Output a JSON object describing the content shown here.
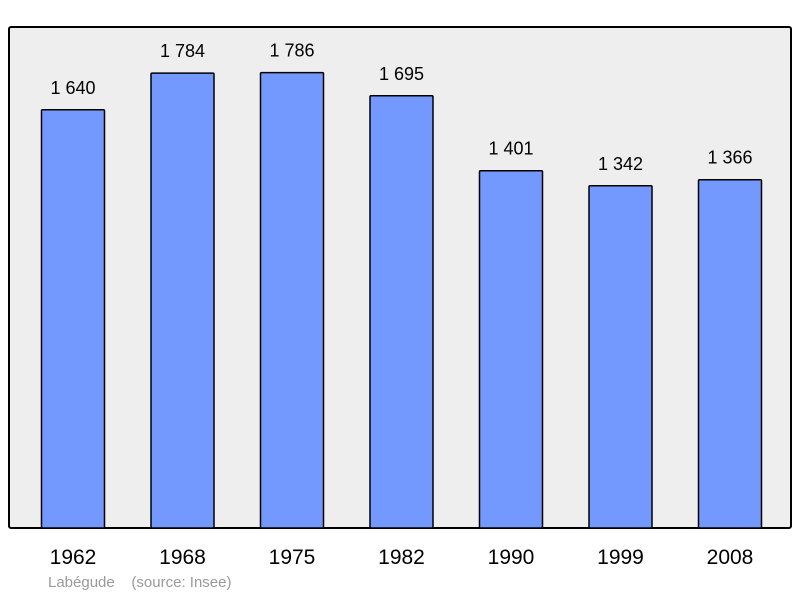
{
  "chart_data": {
    "type": "bar",
    "categories": [
      "1962",
      "1968",
      "1975",
      "1982",
      "1990",
      "1999",
      "2008"
    ],
    "values": [
      1640,
      1784,
      1786,
      1695,
      1401,
      1342,
      1366
    ],
    "value_labels": [
      "1 640",
      "1 784",
      "1 786",
      "1 695",
      "1 401",
      "1 342",
      "1 366"
    ],
    "title": "",
    "xlabel": "",
    "ylabel": "",
    "ylim": [
      0,
      1900
    ],
    "grid": false,
    "legend": "none",
    "colors": {
      "bar_fill": "#7399ff",
      "bar_stroke": "#000000",
      "plot_background": "#eeeeee"
    }
  },
  "footer": {
    "place": "Labégude",
    "source": "(source: Insee)"
  }
}
